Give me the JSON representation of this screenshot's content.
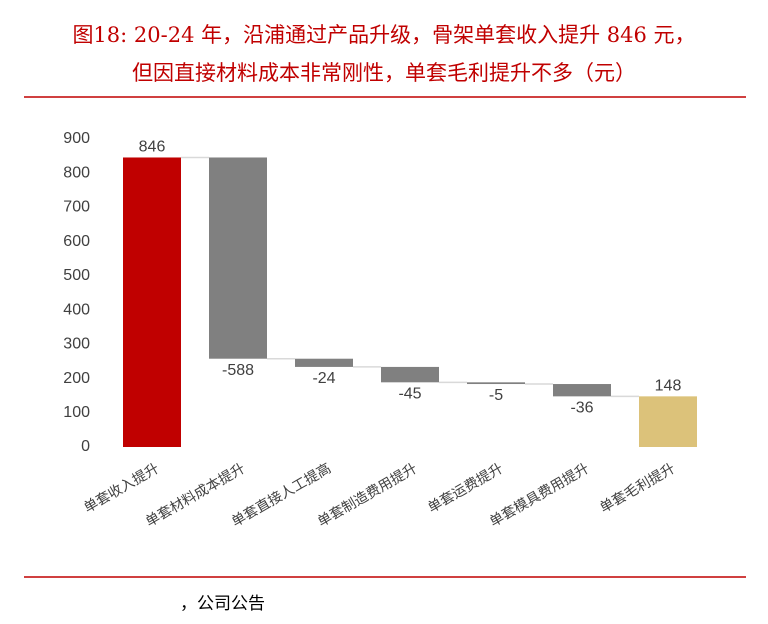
{
  "chart_data": {
    "type": "waterfall",
    "title": "图18:  20-24 年，沿浦通过产品升级，骨架单套收入提升 846 元，",
    "subtitle": "但因直接材料成本非常刚性，单套毛利提升不多（元）",
    "categories": [
      "单套收入提升",
      "单套材料成本提升",
      "单套直接人工提高",
      "单套制造费用提升",
      "单套运费提升",
      "单套模具费用提升",
      "单套毛利提升"
    ],
    "values": [
      846,
      -588,
      -24,
      -45,
      -5,
      -36,
      148
    ],
    "measure": [
      "absolute",
      "relative",
      "relative",
      "relative",
      "relative",
      "relative",
      "total"
    ],
    "colors": [
      "#c00000",
      "#808080",
      "#808080",
      "#808080",
      "#808080",
      "#808080",
      "#dcc27a"
    ],
    "ylim": [
      0,
      900
    ],
    "yticks": [
      0,
      100,
      200,
      300,
      400,
      500,
      600,
      700,
      800,
      900
    ],
    "source": "，公司公告"
  }
}
